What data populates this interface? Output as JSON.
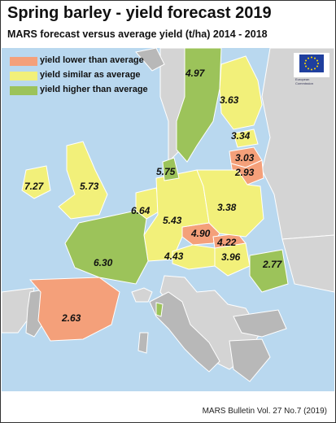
{
  "title": "Spring barley - yield forecast 2019",
  "subtitle": "MARS forecast versus average yield (t/ha) 2014 - 2018",
  "footer": "MARS Bulletin Vol. 27 No.7 (2019)",
  "legend": [
    {
      "label": "yield lower than average",
      "color": "#f4a07a"
    },
    {
      "label": "yield similar as average",
      "color": "#f2f07a"
    },
    {
      "label": "yield higher than average",
      "color": "#9cc35a"
    }
  ],
  "colors": {
    "sea": "#b9d8ef",
    "non_eu": "#d4d4d4",
    "no_data": "#b8b8b8",
    "border": "#ffffff"
  },
  "eu_logo_icon": "eu-flag-icon",
  "eu_logo_caption": "European Commission",
  "regions": [
    {
      "name": "Finland",
      "value": "3.63",
      "class": "similar"
    },
    {
      "name": "Sweden",
      "value": "4.97",
      "class": "higher"
    },
    {
      "name": "Estonia",
      "value": "3.34",
      "class": "similar"
    },
    {
      "name": "Latvia",
      "value": "3.03",
      "class": "lower"
    },
    {
      "name": "Lithuania",
      "value": "2.93",
      "class": "lower"
    },
    {
      "name": "Denmark",
      "value": "5.75",
      "class": "higher"
    },
    {
      "name": "Ireland",
      "value": "7.27",
      "class": "similar"
    },
    {
      "name": "United Kingdom",
      "value": "5.73",
      "class": "similar"
    },
    {
      "name": "Benelux",
      "value": "6.64",
      "class": "similar"
    },
    {
      "name": "Germany",
      "value": "5.43",
      "class": "similar"
    },
    {
      "name": "Poland",
      "value": "3.38",
      "class": "similar"
    },
    {
      "name": "Czechia",
      "value": "4.90",
      "class": "lower"
    },
    {
      "name": "Slovakia",
      "value": "4.22",
      "class": "lower"
    },
    {
      "name": "Austria",
      "value": "4.43",
      "class": "similar"
    },
    {
      "name": "Hungary",
      "value": "3.96",
      "class": "similar"
    },
    {
      "name": "Romania",
      "value": "2.77",
      "class": "higher"
    },
    {
      "name": "France",
      "value": "6.30",
      "class": "higher"
    },
    {
      "name": "Spain",
      "value": "2.63",
      "class": "lower"
    }
  ]
}
